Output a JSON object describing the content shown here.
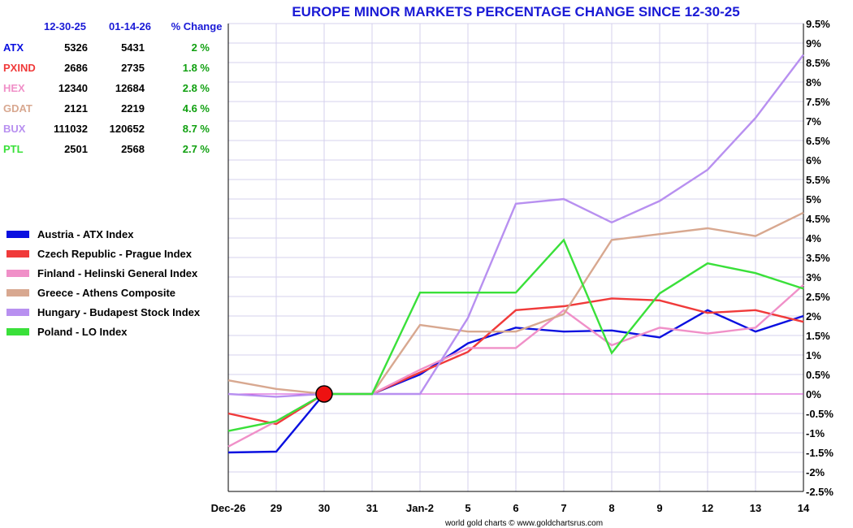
{
  "chart_data": {
    "type": "line",
    "title": "EUROPE MINOR MARKETS PERCENTAGE CHANGE SINCE 12-30-25",
    "categories": [
      "Dec-26",
      "29",
      "30",
      "31",
      "Jan-2",
      "5",
      "6",
      "7",
      "8",
      "9",
      "12",
      "13",
      "14"
    ],
    "y_ticks": [
      "9.5%",
      "9%",
      "8.5%",
      "8%",
      "7.5%",
      "7%",
      "6.5%",
      "6%",
      "5.5%",
      "5%",
      "4.5%",
      "4%",
      "3.5%",
      "3%",
      "2.5%",
      "2%",
      "1.5%",
      "1%",
      "0.5%",
      "0%",
      "-0.5%",
      "-1%",
      "-1.5%",
      "-2%",
      "-2.5%"
    ],
    "ylim": [
      -2.5,
      9.5
    ],
    "grid": true,
    "series": [
      {
        "name": "Austria - ATX Index",
        "color": "#0a10e0",
        "values": [
          -1.5,
          -1.48,
          0,
          0,
          0.5,
          1.3,
          1.7,
          1.6,
          1.63,
          1.45,
          2.15,
          1.6,
          2.0
        ]
      },
      {
        "name": "Czech Republic - Prague Index",
        "color": "#f03a3a",
        "values": [
          -0.5,
          -0.77,
          0,
          0,
          0.55,
          1.08,
          2.15,
          2.25,
          2.45,
          2.4,
          2.08,
          2.15,
          1.85
        ]
      },
      {
        "name": "Finland - Helinski General Index",
        "color": "#f090c8",
        "values": [
          -1.35,
          -0.7,
          0,
          0,
          0.62,
          1.18,
          1.18,
          2.15,
          1.25,
          1.7,
          1.55,
          1.7,
          2.8
        ]
      },
      {
        "name": "Greece - Athens Composite",
        "color": "#d8a890",
        "values": [
          0.35,
          0.13,
          0,
          0,
          1.77,
          1.6,
          1.6,
          2.05,
          3.95,
          4.1,
          4.25,
          4.05,
          4.65
        ]
      },
      {
        "name": "Hungary - Budapest Stock Index",
        "color": "#b890f0",
        "values": [
          0,
          -0.07,
          0,
          0,
          0,
          1.95,
          4.88,
          5.0,
          4.4,
          4.95,
          5.75,
          7.08,
          8.7
        ]
      },
      {
        "name": "Poland - LO Index",
        "color": "#3ae03a",
        "values": [
          -0.95,
          -0.7,
          0,
          0,
          2.6,
          2.6,
          2.6,
          3.95,
          1.05,
          2.58,
          3.35,
          3.1,
          2.7
        ]
      }
    ],
    "baseline_marker": {
      "category": "30",
      "value": 0
    },
    "table": {
      "headers": [
        "12-30-25",
        "01-14-26",
        "% Change"
      ],
      "rows": [
        {
          "ticker": "ATX",
          "color": "#0a10e0",
          "start": "5326",
          "end": "5431",
          "change": "2 %"
        },
        {
          "ticker": "PXIND",
          "color": "#f03a3a",
          "start": "2686",
          "end": "2735",
          "change": "1.8 %"
        },
        {
          "ticker": "HEX",
          "color": "#f090c8",
          "start": "12340",
          "end": "12684",
          "change": "2.8 %"
        },
        {
          "ticker": "GDAT",
          "color": "#d8a890",
          "start": "2121",
          "end": "2219",
          "change": "4.6 %"
        },
        {
          "ticker": "BUX",
          "color": "#b890f0",
          "start": "111032",
          "end": "120652",
          "change": "8.7 %"
        },
        {
          "ticker": "PTL",
          "color": "#3ae03a",
          "start": "2501",
          "end": "2568",
          "change": "2.7 %"
        }
      ]
    },
    "header_color": "#1a1ad6",
    "change_color": "#10a010",
    "grid_color": "#d4d0ee",
    "zero_line_color": "#d040d0",
    "marker_color": "#ee1111",
    "credit": "world gold charts © www.goldchartsrus.com"
  }
}
